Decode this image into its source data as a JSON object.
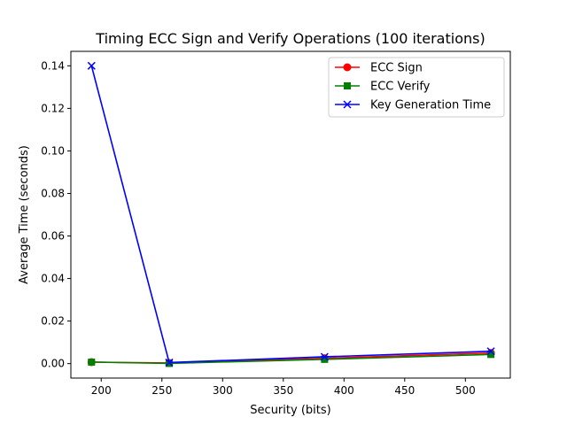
{
  "chart_data": {
    "type": "line",
    "title": "Timing ECC Sign and Verify Operations (100 iterations)",
    "xlabel": "Security (bits)",
    "ylabel": "Average Time (seconds)",
    "xlim": [
      175,
      537
    ],
    "ylim": [
      -0.0068,
      0.1468
    ],
    "xticks": [
      200,
      250,
      300,
      350,
      400,
      450,
      500
    ],
    "yticks": [
      0.0,
      0.02,
      0.04,
      0.06,
      0.08,
      0.1,
      0.12,
      0.14
    ],
    "ytick_labels": [
      "0.00",
      "0.02",
      "0.04",
      "0.06",
      "0.08",
      "0.10",
      "0.12",
      "0.14"
    ],
    "grid": false,
    "legend_position": "top-right",
    "x": [
      192,
      256,
      384,
      521
    ],
    "series": [
      {
        "name": "ECC Sign",
        "color": "#ff0000",
        "marker": "circle",
        "values": [
          0.0007,
          0.0003,
          0.0025,
          0.005
        ]
      },
      {
        "name": "ECC Verify",
        "color": "#008000",
        "marker": "square",
        "values": [
          0.0007,
          0.0001,
          0.002,
          0.0043
        ]
      },
      {
        "name": "Key Generation Time",
        "color": "#0000ff",
        "marker": "x",
        "values": [
          0.14,
          0.0005,
          0.0032,
          0.0058
        ]
      }
    ]
  }
}
